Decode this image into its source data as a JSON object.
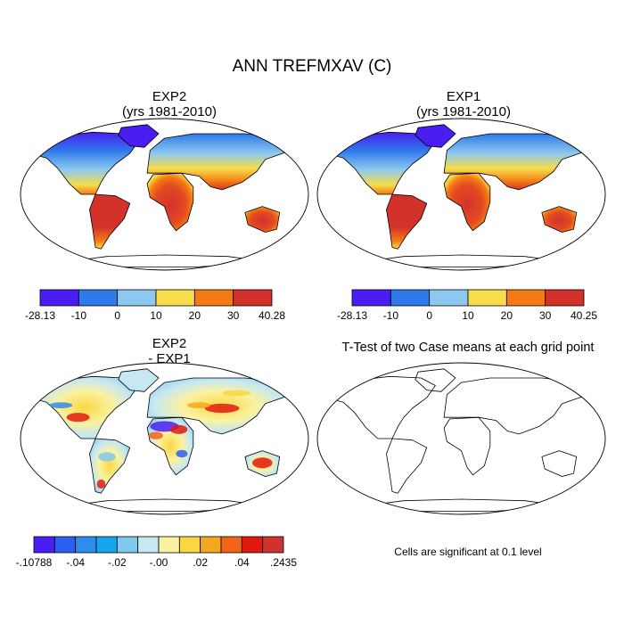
{
  "title": "ANN TREFMXAV (C)",
  "panels": [
    {
      "title_lines": [
        "EXP2",
        "(yrs 1981-2010)"
      ],
      "colorbar": {
        "colors": [
          "#4a1ef2",
          "#2f79eb",
          "#8cc8ef",
          "#f7dd4a",
          "#f47a14",
          "#d3322b"
        ],
        "labels": [
          "-28.13",
          "-10",
          "0",
          "10",
          "20",
          "30",
          "40.28"
        ]
      }
    },
    {
      "title_lines": [
        "EXP1",
        "(yrs 1981-2010)"
      ],
      "colorbar": {
        "colors": [
          "#4a1ef2",
          "#2f79eb",
          "#8cc8ef",
          "#f7dd4a",
          "#f47a14",
          "#d3322b"
        ],
        "labels": [
          "-28.13",
          "-10",
          "0",
          "10",
          "20",
          "30",
          "40.25"
        ]
      }
    },
    {
      "title_lines": [
        "EXP2",
        "- EXP1"
      ],
      "colorbar": {
        "colors": [
          "#4a1ef2",
          "#2b5ff0",
          "#2f8cec",
          "#15a6ee",
          "#7fc9ec",
          "#c6e8f2",
          "#fbf2a0",
          "#f8d742",
          "#f5a81f",
          "#f26418",
          "#e01a13",
          "#cf332e"
        ],
        "labels": [
          "-.10788",
          "-.04",
          "-.02",
          "-.00",
          ".02",
          ".04",
          ".2435"
        ]
      }
    },
    {
      "title": "T-Test of two Case means at each grid point",
      "note": "Cells are significant at 0.1 level"
    }
  ]
}
